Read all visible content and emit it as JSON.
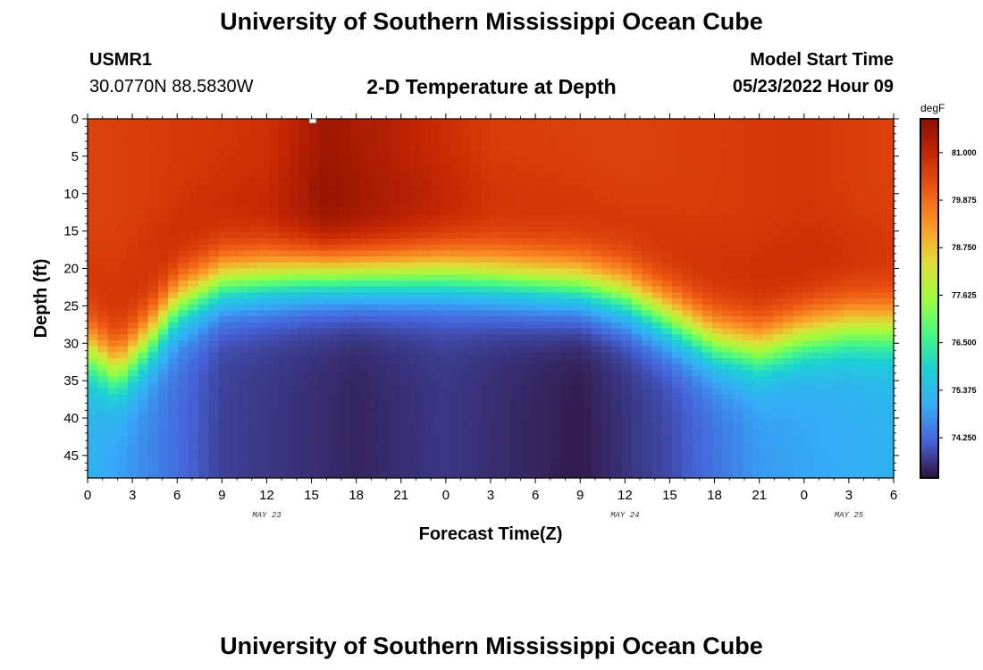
{
  "header": {
    "title": "University of Southern Mississippi Ocean Cube",
    "station": "USMR1",
    "coords": "30.0770N  88.5830W",
    "subtitle": "2-D Temperature at Depth",
    "start_label": "Model Start Time",
    "start_value": "05/23/2022 Hour 09"
  },
  "footer": {
    "title": "University of Southern Mississippi Ocean Cube"
  },
  "chart_data": {
    "type": "heatmap",
    "xlabel": "Forecast Time(Z)",
    "ylabel": "Depth (ft)",
    "x_tick_labels": [
      "0",
      "3",
      "6",
      "9",
      "12",
      "15",
      "18",
      "21",
      "0",
      "3",
      "6",
      "9",
      "12",
      "15",
      "18",
      "21",
      "0",
      "3",
      "6"
    ],
    "date_labels": [
      {
        "label": "MAY 23",
        "hour": 12
      },
      {
        "label": "MAY 24",
        "hour": 36
      },
      {
        "label": "MAY 25",
        "hour": 51
      }
    ],
    "x_range_hours": [
      0,
      54
    ],
    "y_ticks": [
      0,
      5,
      10,
      15,
      20,
      25,
      30,
      35,
      40,
      45
    ],
    "y_range": [
      0,
      48
    ],
    "colorbar": {
      "unit": "degF",
      "min": 73.3,
      "max": 81.8,
      "tick_labels": [
        "81.000",
        "79.875",
        "78.750",
        "77.625",
        "76.500",
        "75.375",
        "74.250"
      ],
      "ticks": [
        81.0,
        79.875,
        78.75,
        77.625,
        76.5,
        75.375,
        74.25
      ],
      "colors": [
        "#30123b",
        "#4662d8",
        "#35abf8",
        "#1bd0d5",
        "#46f884",
        "#a2fc3c",
        "#e1dd37",
        "#fb9b27",
        "#ee5a13",
        "#c82803",
        "#8a0f02"
      ]
    },
    "thermocline_depth_by_hour": [
      {
        "hour": 0,
        "depth": 31
      },
      {
        "hour": 2,
        "depth": 34
      },
      {
        "hour": 4,
        "depth": 30
      },
      {
        "hour": 6,
        "depth": 25
      },
      {
        "hour": 9,
        "depth": 22
      },
      {
        "hour": 12,
        "depth": 21.5
      },
      {
        "hour": 15,
        "depth": 21
      },
      {
        "hour": 18,
        "depth": 21
      },
      {
        "hour": 21,
        "depth": 21
      },
      {
        "hour": 24,
        "depth": 21
      },
      {
        "hour": 27,
        "depth": 21.5
      },
      {
        "hour": 30,
        "depth": 22
      },
      {
        "hour": 33,
        "depth": 22.5
      },
      {
        "hour": 36,
        "depth": 24
      },
      {
        "hour": 39,
        "depth": 27
      },
      {
        "hour": 42,
        "depth": 30
      },
      {
        "hour": 45,
        "depth": 31
      },
      {
        "hour": 48,
        "depth": 29
      },
      {
        "hour": 51,
        "depth": 28
      },
      {
        "hour": 54,
        "depth": 28
      }
    ],
    "surface_temp_by_hour": [
      {
        "hour": 0,
        "temp": 80.5
      },
      {
        "hour": 12,
        "temp": 80.8
      },
      {
        "hour": 16,
        "temp": 81.5
      },
      {
        "hour": 20,
        "temp": 81.2
      },
      {
        "hour": 27,
        "temp": 80.6
      },
      {
        "hour": 36,
        "temp": 80.5
      },
      {
        "hour": 48,
        "temp": 80.7
      },
      {
        "hour": 54,
        "temp": 80.5
      }
    ],
    "bottom_temp_by_hour": [
      {
        "hour": 0,
        "temp": 75.2
      },
      {
        "hour": 4,
        "temp": 74.6
      },
      {
        "hour": 9,
        "temp": 73.8
      },
      {
        "hour": 18,
        "temp": 73.5
      },
      {
        "hour": 24,
        "temp": 73.7
      },
      {
        "hour": 33,
        "temp": 73.4
      },
      {
        "hour": 39,
        "temp": 73.9
      },
      {
        "hour": 45,
        "temp": 74.8
      },
      {
        "hour": 54,
        "temp": 75.2
      }
    ]
  }
}
